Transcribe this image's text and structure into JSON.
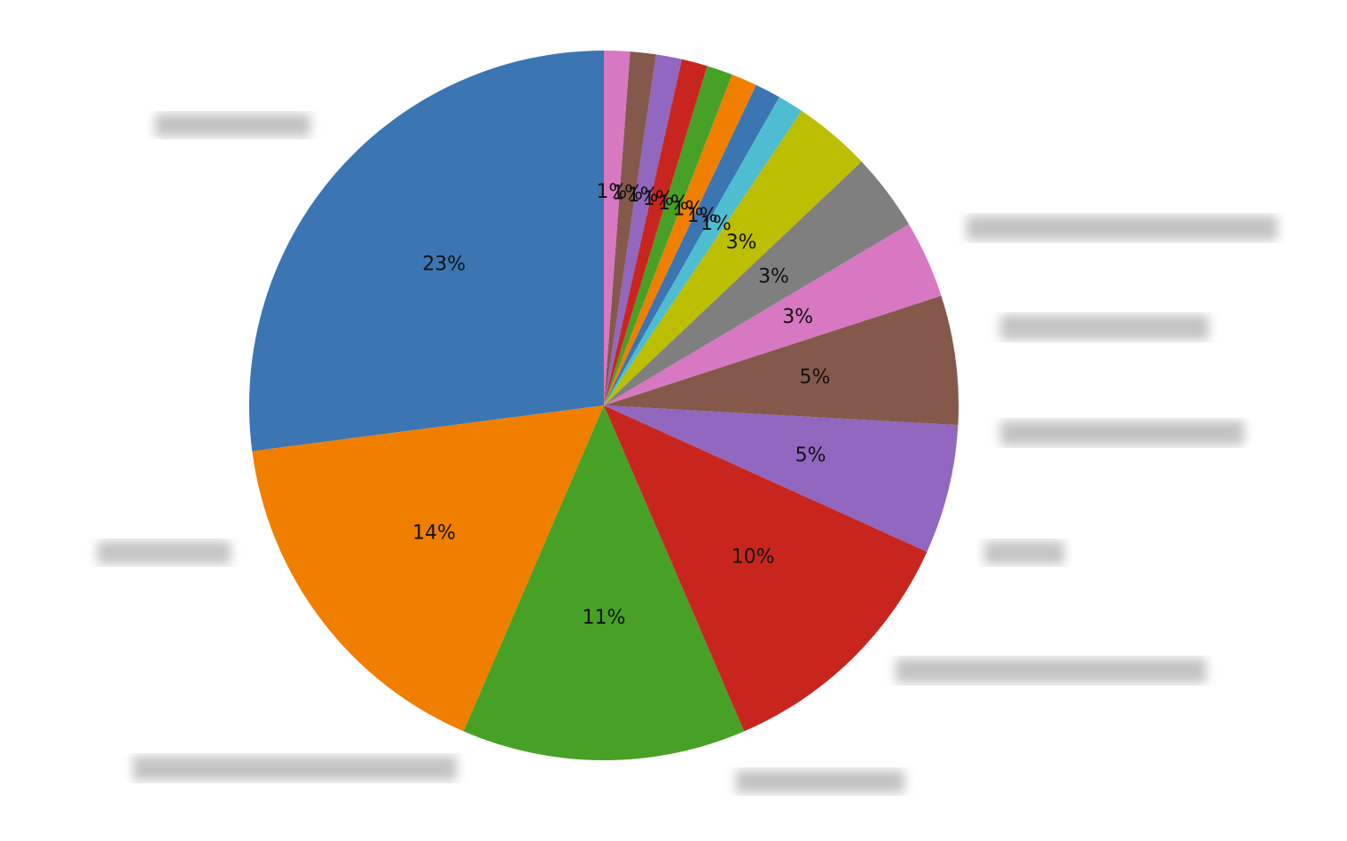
{
  "chart_data": {
    "type": "pie",
    "categories": [
      null,
      null,
      null,
      null,
      null,
      null,
      null,
      null,
      null,
      null,
      null,
      null,
      null,
      null,
      null,
      null,
      null
    ],
    "values": [
      23,
      14,
      11,
      10,
      5,
      5,
      3,
      3,
      3,
      1,
      1,
      1,
      1,
      1,
      1,
      1,
      1
    ],
    "value_labels": [
      "23%",
      "14%",
      "11%",
      "10%",
      "5%",
      "5%",
      "3%",
      "3%",
      "3%",
      "1%",
      "1%",
      "1%",
      "1%",
      "1%",
      "1%",
      "1%",
      "1%"
    ],
    "colors": [
      "#3b76b3",
      "#f07f00",
      "#47a126",
      "#c9251f",
      "#9167bf",
      "#85584c",
      "#d878c2",
      "#7f7f7f",
      "#bcbe00",
      "#4ebdd1",
      "#3b76b3",
      "#f07f00",
      "#47a126",
      "#c9251f",
      "#9167bf",
      "#85584c",
      "#d878c2"
    ]
  }
}
